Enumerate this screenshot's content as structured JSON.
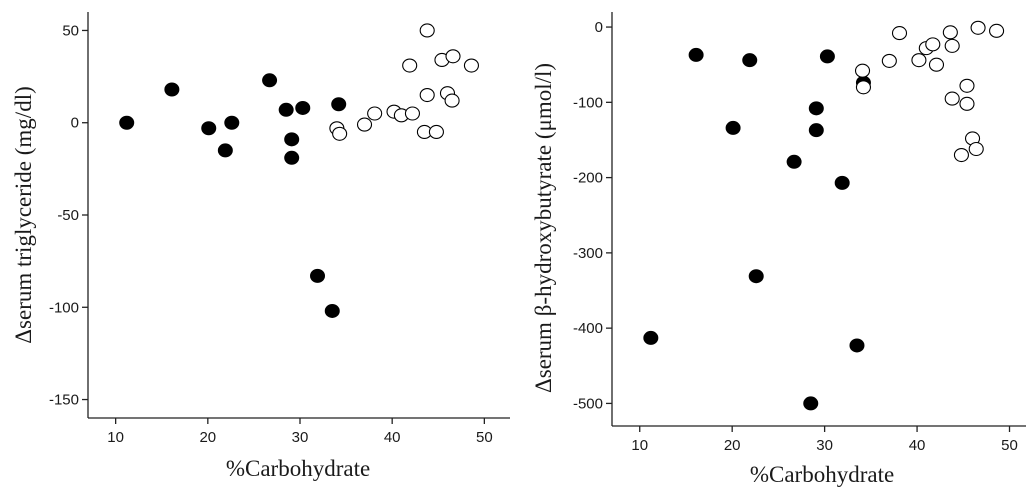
{
  "chart_data": [
    {
      "type": "scatter",
      "xlabel": "%Carbohydrate",
      "ylabel": "Δserum triglyceride (mg/dl)",
      "xlim": [
        7,
        53
      ],
      "ylim": [
        -160,
        60
      ],
      "xticks": [
        10,
        20,
        30,
        40,
        50
      ],
      "yticks": [
        50,
        0,
        -50,
        -100,
        -150
      ],
      "grid": false,
      "series": [
        {
          "marker": "filled-circle",
          "color": "#000000",
          "x": [
            11.2,
            16.1,
            20.1,
            21.9,
            22.6,
            26.7,
            28.5,
            29.1,
            29.1,
            30.3,
            31.9,
            33.5,
            34.2
          ],
          "y": [
            0,
            18,
            -3,
            -15,
            0,
            23,
            7,
            -9,
            -19,
            8,
            -83,
            -102,
            10
          ]
        },
        {
          "marker": "open-circle",
          "color": "#000000",
          "x": [
            34.0,
            34.3,
            37.0,
            38.1,
            40.2,
            41.0,
            41.9,
            42.2,
            43.5,
            43.8,
            43.8,
            44.8,
            45.4,
            46.0,
            46.6,
            46.5,
            48.6
          ],
          "y": [
            -3,
            -6,
            -1,
            5,
            6,
            4,
            31,
            5,
            -5,
            15,
            50,
            -5,
            34,
            16,
            36,
            12,
            31
          ]
        }
      ]
    },
    {
      "type": "scatter",
      "xlabel": "%Carbohydrate",
      "ylabel": "Δserum β-hydroxybutyrate (μmol/l)",
      "xlim": [
        7,
        52
      ],
      "ylim": [
        -530,
        20
      ],
      "xticks": [
        10,
        20,
        30,
        40,
        50
      ],
      "yticks": [
        0,
        -100,
        -200,
        -300,
        -400,
        -500
      ],
      "grid": false,
      "series": [
        {
          "marker": "filled-circle",
          "color": "#000000",
          "x": [
            11.2,
            16.1,
            20.1,
            21.9,
            22.6,
            26.7,
            28.5,
            29.1,
            29.1,
            30.3,
            31.9,
            33.5,
            34.2
          ],
          "y": [
            -413,
            -37,
            -134,
            -44,
            -331,
            -179,
            -500,
            -108,
            -137,
            -39,
            -207,
            -423,
            -74
          ]
        },
        {
          "marker": "open-circle",
          "color": "#000000",
          "x": [
            34.1,
            34.2,
            37.0,
            38.1,
            40.2,
            41.0,
            41.7,
            42.1,
            43.6,
            43.8,
            43.8,
            44.8,
            45.4,
            45.4,
            46.0,
            46.4,
            46.6,
            48.6
          ],
          "y": [
            -58,
            -80,
            -45,
            -8,
            -44,
            -28,
            -23,
            -50,
            -7,
            -25,
            -95,
            -170,
            -78,
            -102,
            -148,
            -162,
            -1,
            -5
          ]
        }
      ]
    }
  ]
}
